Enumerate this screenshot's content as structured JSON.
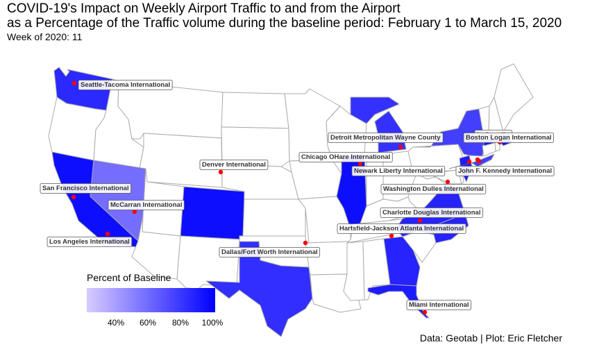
{
  "title": "COVID-19's Impact on Weekly Airport Traffic to and from the Airport",
  "subtitle": "as a Percentage of the Traffic volume during the baseline period: February 1 to March 15, 2020",
  "week_label": "Week of 2020: 11",
  "caption": "Data: Geotab | Plot: Eric Fletcher",
  "legend": {
    "title": "Percent of Baseline",
    "ticks": [
      "40%",
      "60%",
      "80%",
      "100%"
    ],
    "color_low": "#d9ccff",
    "color_high": "#0000ff",
    "range": [
      30,
      105
    ]
  },
  "colors": {
    "point": "#ff0000",
    "state_border": "#aaaaaa",
    "empty_state": "#ffffff"
  },
  "airports": [
    {
      "name": "Seattle-Tacoma International",
      "state": "WA",
      "pct": 90
    },
    {
      "name": "San Francisco International",
      "state": "CA",
      "pct": 100
    },
    {
      "name": "Los Angeles International",
      "state": "CA",
      "pct": 100
    },
    {
      "name": "McCarran International",
      "state": "NV",
      "pct": 65
    },
    {
      "name": "Denver International",
      "state": "CO",
      "pct": 100
    },
    {
      "name": "Dallas/Fort Worth International",
      "state": "TX",
      "pct": 88
    },
    {
      "name": "Chicago OHare International",
      "state": "IL",
      "pct": 100
    },
    {
      "name": "Detroit Metropolitan Wayne County",
      "state": "MI",
      "pct": 87
    },
    {
      "name": "Hartsfield-Jackson Atlanta International",
      "state": "GA",
      "pct": 92
    },
    {
      "name": "Charlotte Douglas International",
      "state": "NC",
      "pct": 92
    },
    {
      "name": "Washington Dulles International",
      "state": "VA",
      "pct": 92
    },
    {
      "name": "Newark Liberty International",
      "state": "NJ",
      "pct": 95
    },
    {
      "name": "John F. Kennedy International",
      "state": "NY",
      "pct": 82
    },
    {
      "name": "LaGuardia",
      "state": "NY",
      "pct": 82
    },
    {
      "name": "Boston Logan International",
      "state": "MA",
      "pct": 100
    },
    {
      "name": "Miami International",
      "state": "FL",
      "pct": 95
    }
  ]
}
